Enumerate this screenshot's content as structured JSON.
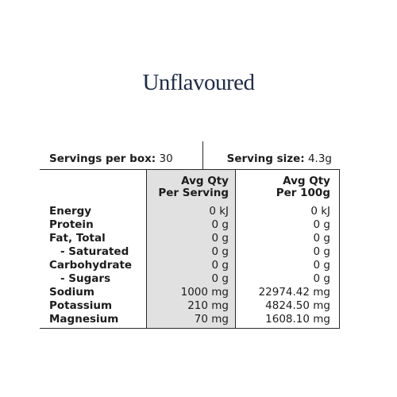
{
  "title": "Unflavoured",
  "servings": {
    "label": "Servings per box:",
    "value": "30"
  },
  "serving_size": {
    "label": "Serving size:",
    "value": "4.3g"
  },
  "columns": {
    "per_serving": [
      "Avg Qty",
      "Per Serving"
    ],
    "per_100g": [
      "Avg Qty",
      "Per 100g"
    ]
  },
  "rows": [
    {
      "name": "Energy",
      "per_serving": "0 kJ",
      "per_100g": "0 kJ"
    },
    {
      "name": "Protein",
      "per_serving": "0 g",
      "per_100g": "0 g"
    },
    {
      "name": "Fat, Total",
      "per_serving": "0 g",
      "per_100g": "0 g"
    },
    {
      "name": "- Saturated",
      "per_serving": "0 g",
      "per_100g": "0 g"
    },
    {
      "name": "Carbohydrate",
      "per_serving": "0 g",
      "per_100g": "0 g"
    },
    {
      "name": "- Sugars",
      "per_serving": "0 g",
      "per_100g": "0 g"
    },
    {
      "name": "Sodium",
      "per_serving": "1000 mg",
      "per_100g": "22974.42 mg"
    },
    {
      "name": "Potassium",
      "per_serving": "210 mg",
      "per_100g": "4824.50 mg"
    },
    {
      "name": "Magnesium",
      "per_serving": "70 mg",
      "per_100g": "1608.10 mg"
    }
  ]
}
